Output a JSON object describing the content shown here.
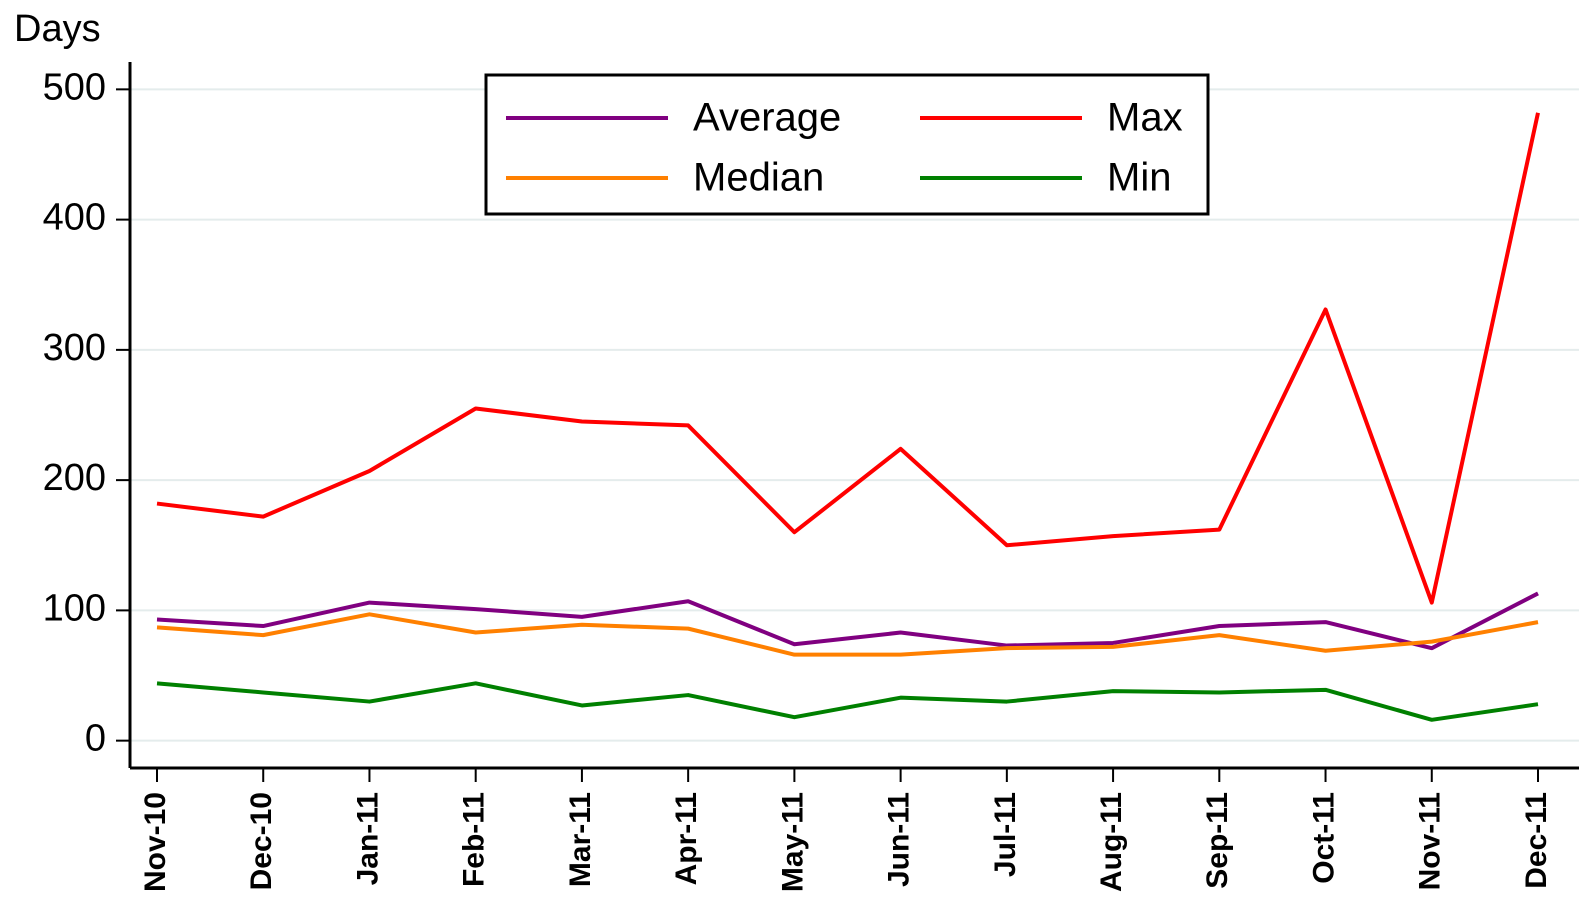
{
  "chart_data": {
    "type": "line",
    "y_label": "Days",
    "categories": [
      "Nov-10",
      "Dec-10",
      "Jan-11",
      "Feb-11",
      "Mar-11",
      "Apr-11",
      "May-11",
      "Jun-11",
      "Jul-11",
      "Aug-11",
      "Sep-11",
      "Oct-11",
      "Nov-11",
      "Dec-11"
    ],
    "series": [
      {
        "name": "Average",
        "color": "#800080",
        "values": [
          93,
          88,
          106,
          101,
          95,
          107,
          74,
          83,
          73,
          75,
          88,
          91,
          71,
          113
        ]
      },
      {
        "name": "Max",
        "color": "#ff0000",
        "values": [
          182,
          172,
          207,
          255,
          245,
          242,
          160,
          224,
          150,
          157,
          162,
          331,
          106,
          482
        ]
      },
      {
        "name": "Median",
        "color": "#ff8000",
        "values": [
          87,
          81,
          97,
          83,
          89,
          86,
          66,
          66,
          71,
          72,
          81,
          69,
          76,
          91
        ]
      },
      {
        "name": "Min",
        "color": "#008000",
        "values": [
          44,
          37,
          30,
          44,
          27,
          35,
          18,
          33,
          30,
          38,
          37,
          39,
          16,
          28
        ]
      }
    ],
    "ylim": [
      -21,
      521
    ],
    "yticks": [
      0,
      100,
      200,
      300,
      400,
      500
    ],
    "grid": true,
    "legend": "top"
  }
}
